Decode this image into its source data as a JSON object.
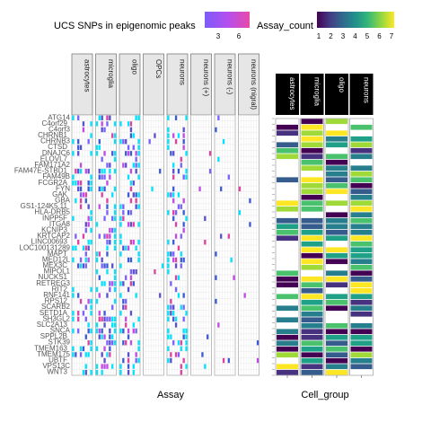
{
  "chart_data": [
    {
      "type": "heatmap",
      "facet_title": "",
      "xlabel": "Assay",
      "ylabel": "",
      "legend": {
        "title": "UCS SNPs in epigenomic peaks",
        "ticks": [
          "3",
          "6"
        ],
        "colors": [
          "#8e55f5",
          "#d946ef"
        ],
        "placement": "top-left"
      },
      "facets": [
        "astrocytes",
        "microglia",
        "oligo",
        "OPCs",
        "neurons",
        "neurons (+)",
        "neurons (-)",
        "neurons (nigral)"
      ],
      "genes": [
        "ATG14",
        "C4orf29",
        "C4orf3",
        "CHRNB1",
        "CHRNB3",
        "CTSD",
        "DNAJC6",
        "ELOVL7",
        "FAM171A2",
        "FAM47E-STBD1",
        "FAM49B",
        "FCGR2A",
        "FYN",
        "GAK",
        "GBA",
        "GS1-124K5.11",
        "HLA-DRB5",
        "INPP5F",
        "ITGA8",
        "KCNIP3",
        "KRTCAP2",
        "LINC00693",
        "LOC100131289",
        "MAPT",
        "MED12L",
        "MEX3C",
        "MIPOL1",
        "NUCKS1",
        "RETREG3",
        "RIT2",
        "RNF141",
        "RPS12",
        "SCARB2",
        "SETD1A",
        "SH3GL2",
        "SLC2A13",
        "SNCA",
        "SPPL2B",
        "STK39",
        "TMEM163",
        "TMEM175",
        "UBTF",
        "VPS13C",
        "WNT3"
      ],
      "marks_note": "",
      "values_range": [
        1,
        7
      ]
    },
    {
      "type": "heatmap",
      "xlabel": "Cell_group",
      "legend": {
        "title": "Assay_count",
        "ticks": [
          "1",
          "2",
          "3",
          "4",
          "5",
          "6",
          "7"
        ],
        "colors": [
          "#440154",
          "#46327e",
          "#365c8d",
          "#277f8e",
          "#1fa187",
          "#4ac16d",
          "#a0da39",
          "#fde725"
        ],
        "placement": "top-right"
      },
      "facets": [
        "astrocytes",
        "microglia",
        "oligo",
        "neurons"
      ],
      "ylim": [
        0,
        44
      ]
    }
  ]
}
